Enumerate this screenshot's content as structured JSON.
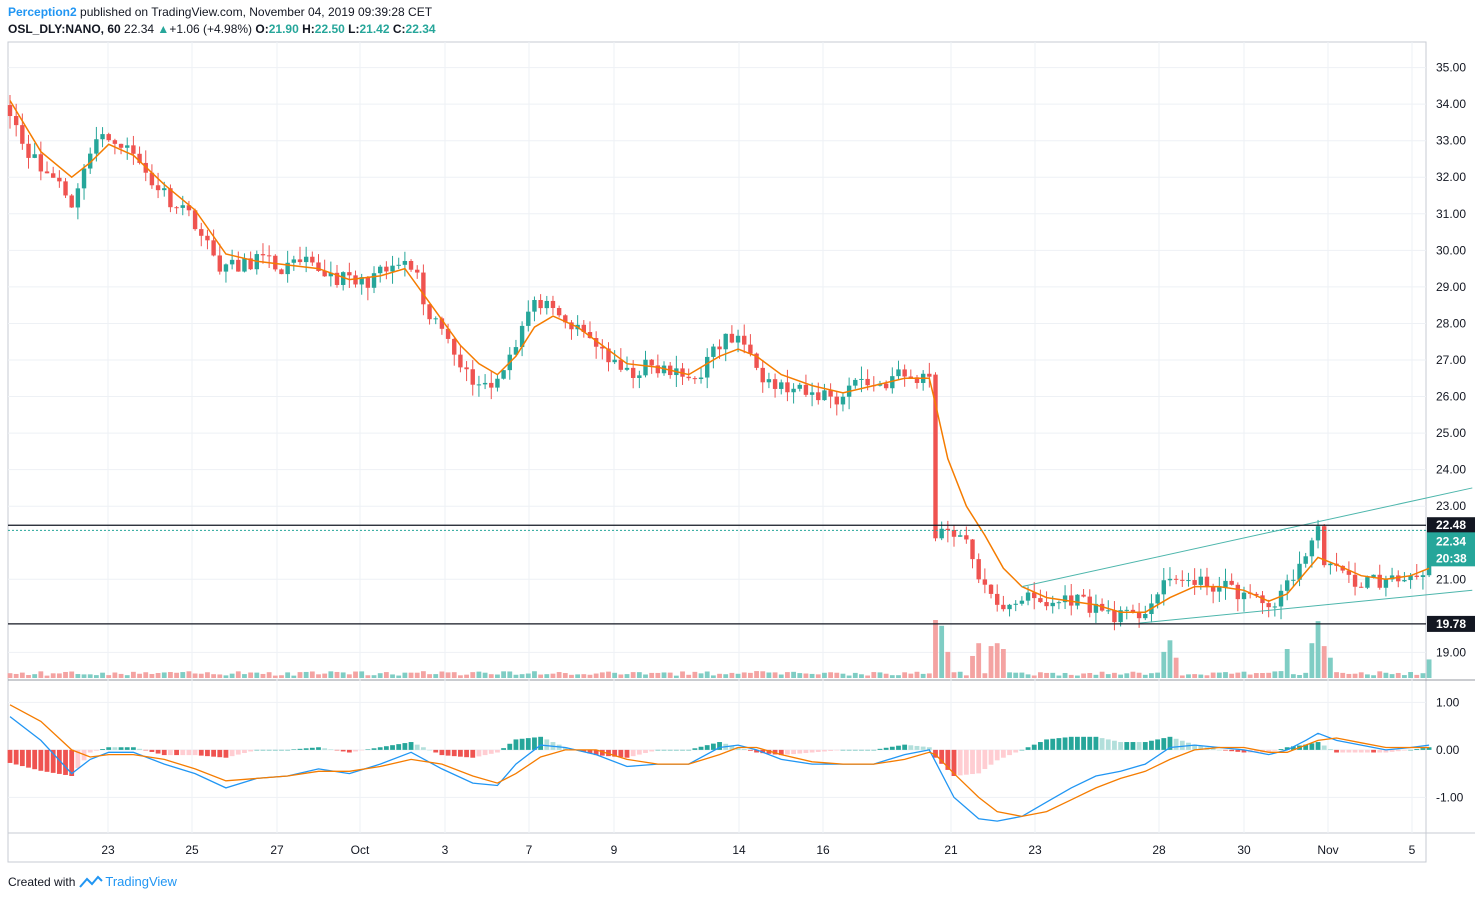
{
  "header": {
    "author": "Perception2",
    "published_text": "published on TradingView.com, November 04, 2019 09:39:28 CET",
    "symbol": "OSL_DLY:NANO, 60",
    "last": "22.34",
    "change": "+1.06 (+4.98%)",
    "open_label": "O:",
    "open": "21.90",
    "high_label": "H:",
    "high": "22.50",
    "low_label": "L:",
    "low": "21.42",
    "close_label": "C:",
    "close": "22.34"
  },
  "footer": {
    "created_with": "Created with",
    "brand": "TradingView"
  },
  "colors": {
    "up": "#26a69a",
    "down": "#ef5350",
    "up_vol": "#7fcdc4",
    "down_vol": "#f4a3a2",
    "ema": "#f57c00",
    "macd": "#2196f3",
    "signal": "#f57c00",
    "hist_up_strong": "#26a69a",
    "hist_up_weak": "#b2dfdb",
    "hist_down_strong": "#ef5350",
    "hist_down_weak": "#ffcdd2",
    "trend": "#4db6ac",
    "grid": "#eef1f5"
  },
  "chart_data": {
    "type": "candlestick",
    "symbol": "OSL_DLY:NANO",
    "interval": "60",
    "price_axis": {
      "ticks": [
        "35.00",
        "34.00",
        "33.00",
        "32.00",
        "31.00",
        "30.00",
        "29.00",
        "28.00",
        "27.00",
        "26.00",
        "25.00",
        "24.00",
        "23.00",
        "21.00",
        "19.00"
      ],
      "range": [
        18.3,
        35.7
      ]
    },
    "time_axis": {
      "ticks": [
        "23",
        "25",
        "27",
        "Oct",
        "3",
        "7",
        "9",
        "14",
        "16",
        "21",
        "23",
        "28",
        "30",
        "Nov",
        "5"
      ]
    },
    "horizontal_levels": [
      {
        "label": "22.48",
        "value": 22.48
      },
      {
        "label": "19.78",
        "value": 19.78
      }
    ],
    "last_price": {
      "label": "22.34",
      "value": 22.34
    },
    "countdown": "20:38",
    "price_path": [
      [
        0,
        33.9
      ],
      [
        2,
        33.0
      ],
      [
        5,
        32.2
      ],
      [
        8,
        31.9
      ],
      [
        10,
        31.3
      ],
      [
        11,
        31.6
      ],
      [
        12,
        32.4
      ],
      [
        14,
        33.0
      ],
      [
        17,
        33.1
      ],
      [
        20,
        32.6
      ],
      [
        23,
        31.9
      ],
      [
        26,
        31.4
      ],
      [
        28,
        31.2
      ],
      [
        30,
        30.8
      ],
      [
        32,
        30.1
      ],
      [
        34,
        29.6
      ],
      [
        37,
        29.5
      ],
      [
        40,
        29.8
      ],
      [
        44,
        29.5
      ],
      [
        48,
        29.6
      ],
      [
        51,
        29.4
      ],
      [
        54,
        29.2
      ],
      [
        57,
        29.1
      ],
      [
        59,
        29.3
      ],
      [
        61,
        29.4
      ],
      [
        63,
        29.6
      ],
      [
        65,
        29.5
      ],
      [
        66,
        29.2
      ],
      [
        67,
        28.3
      ],
      [
        69,
        28.0
      ],
      [
        71,
        27.7
      ],
      [
        73,
        27.0
      ],
      [
        74,
        26.6
      ],
      [
        76,
        26.4
      ],
      [
        78,
        26.3
      ],
      [
        79,
        26.5
      ],
      [
        80,
        26.9
      ],
      [
        82,
        27.5
      ],
      [
        84,
        28.3
      ],
      [
        86,
        28.6
      ],
      [
        88,
        28.2
      ],
      [
        90,
        28.0
      ],
      [
        92,
        27.8
      ],
      [
        94,
        27.6
      ],
      [
        96,
        27.3
      ],
      [
        98,
        26.8
      ],
      [
        100,
        26.6
      ],
      [
        103,
        26.8
      ],
      [
        106,
        26.7
      ],
      [
        108,
        26.6
      ],
      [
        110,
        26.5
      ],
      [
        112,
        26.7
      ],
      [
        114,
        27.2
      ],
      [
        116,
        27.6
      ],
      [
        118,
        27.5
      ],
      [
        120,
        27.4
      ],
      [
        121,
        27.0
      ],
      [
        122,
        26.6
      ],
      [
        124,
        26.3
      ],
      [
        126,
        26.2
      ],
      [
        128,
        26.1
      ],
      [
        130,
        26.0
      ],
      [
        132,
        26.1
      ],
      [
        134,
        25.9
      ],
      [
        136,
        26.3
      ],
      [
        138,
        26.5
      ],
      [
        140,
        26.3
      ],
      [
        142,
        26.4
      ],
      [
        144,
        26.6
      ],
      [
        146,
        26.5
      ],
      [
        148,
        26.5
      ],
      [
        149,
        26.6
      ],
      [
        150,
        22.3
      ],
      [
        152,
        22.4
      ],
      [
        154,
        22.2
      ],
      [
        156,
        21.6
      ],
      [
        158,
        20.7
      ],
      [
        160,
        20.2
      ],
      [
        162,
        20.4
      ],
      [
        164,
        20.5
      ],
      [
        166,
        20.4
      ],
      [
        168,
        20.3
      ],
      [
        170,
        20.4
      ],
      [
        172,
        20.5
      ],
      [
        174,
        20.4
      ],
      [
        176,
        20.2
      ],
      [
        178,
        20.1
      ],
      [
        180,
        20.0
      ],
      [
        182,
        19.9
      ],
      [
        184,
        20.2
      ],
      [
        186,
        20.6
      ],
      [
        188,
        20.9
      ],
      [
        190,
        21.1
      ],
      [
        192,
        20.8
      ],
      [
        194,
        20.9
      ],
      [
        196,
        20.8
      ],
      [
        198,
        20.7
      ],
      [
        200,
        20.6
      ],
      [
        202,
        20.4
      ],
      [
        204,
        20.3
      ],
      [
        206,
        20.5
      ],
      [
        207,
        20.9
      ],
      [
        209,
        21.4
      ],
      [
        211,
        22.0
      ],
      [
        212,
        22.3
      ],
      [
        213,
        21.6
      ],
      [
        215,
        21.2
      ],
      [
        217,
        21.0
      ],
      [
        219,
        20.9
      ],
      [
        221,
        21.0
      ],
      [
        223,
        20.9
      ],
      [
        225,
        21.0
      ],
      [
        227,
        21.1
      ],
      [
        229,
        21.3
      ],
      [
        230,
        22.34
      ]
    ],
    "ema": {
      "name": "",
      "values": [
        [
          0,
          34.1
        ],
        [
          5,
          32.7
        ],
        [
          10,
          32.0
        ],
        [
          13,
          32.4
        ],
        [
          16,
          32.9
        ],
        [
          20,
          32.6
        ],
        [
          25,
          31.8
        ],
        [
          30,
          31.1
        ],
        [
          35,
          29.9
        ],
        [
          40,
          29.7
        ],
        [
          45,
          29.6
        ],
        [
          50,
          29.5
        ],
        [
          55,
          29.2
        ],
        [
          60,
          29.3
        ],
        [
          64,
          29.5
        ],
        [
          67,
          28.8
        ],
        [
          70,
          28.1
        ],
        [
          73,
          27.4
        ],
        [
          76,
          26.9
        ],
        [
          79,
          26.6
        ],
        [
          82,
          27.1
        ],
        [
          85,
          27.9
        ],
        [
          88,
          28.2
        ],
        [
          92,
          27.9
        ],
        [
          96,
          27.4
        ],
        [
          100,
          26.9
        ],
        [
          105,
          26.8
        ],
        [
          110,
          26.6
        ],
        [
          115,
          27.1
        ],
        [
          118,
          27.3
        ],
        [
          121,
          27.1
        ],
        [
          125,
          26.6
        ],
        [
          130,
          26.3
        ],
        [
          135,
          26.1
        ],
        [
          140,
          26.3
        ],
        [
          145,
          26.5
        ],
        [
          149,
          26.5
        ],
        [
          150,
          25.8
        ],
        [
          152,
          24.3
        ],
        [
          155,
          23.0
        ],
        [
          158,
          22.2
        ],
        [
          161,
          21.3
        ],
        [
          164,
          20.8
        ],
        [
          168,
          20.5
        ],
        [
          172,
          20.4
        ],
        [
          176,
          20.3
        ],
        [
          180,
          20.1
        ],
        [
          184,
          20.1
        ],
        [
          188,
          20.5
        ],
        [
          192,
          20.8
        ],
        [
          196,
          20.8
        ],
        [
          200,
          20.7
        ],
        [
          204,
          20.4
        ],
        [
          207,
          20.6
        ],
        [
          210,
          21.2
        ],
        [
          212,
          21.6
        ],
        [
          215,
          21.4
        ],
        [
          219,
          21.1
        ],
        [
          223,
          21.0
        ],
        [
          227,
          21.1
        ],
        [
          230,
          21.3
        ]
      ]
    },
    "trendlines": [
      {
        "from": [
          164,
          20.8
        ],
        "to": [
          237,
          23.5
        ]
      },
      {
        "from": [
          183,
          19.8
        ],
        "to": [
          237,
          20.7
        ]
      }
    ],
    "volume": {
      "spikes": [
        [
          150,
          1.0
        ],
        [
          151,
          0.9
        ],
        [
          152,
          0.45
        ],
        [
          156,
          0.38
        ],
        [
          157,
          0.6
        ],
        [
          159,
          0.55
        ],
        [
          160,
          0.6
        ],
        [
          161,
          0.5
        ],
        [
          187,
          0.45
        ],
        [
          188,
          0.65
        ],
        [
          189,
          0.35
        ],
        [
          207,
          0.5
        ],
        [
          211,
          0.6
        ],
        [
          212,
          0.98
        ],
        [
          213,
          0.55
        ],
        [
          214,
          0.35
        ],
        [
          230,
          0.32
        ]
      ]
    },
    "macd": {
      "axis_ticks": [
        "1.00",
        "0.00",
        "-1.00"
      ],
      "range": [
        -1.75,
        1.45
      ],
      "macd_line": [
        [
          0,
          0.7
        ],
        [
          5,
          0.2
        ],
        [
          10,
          -0.5
        ],
        [
          13,
          -0.2
        ],
        [
          16,
          -0.05
        ],
        [
          20,
          -0.05
        ],
        [
          25,
          -0.3
        ],
        [
          30,
          -0.5
        ],
        [
          35,
          -0.8
        ],
        [
          40,
          -0.6
        ],
        [
          45,
          -0.55
        ],
        [
          50,
          -0.4
        ],
        [
          55,
          -0.5
        ],
        [
          60,
          -0.3
        ],
        [
          65,
          -0.05
        ],
        [
          70,
          -0.4
        ],
        [
          75,
          -0.7
        ],
        [
          79,
          -0.75
        ],
        [
          82,
          -0.3
        ],
        [
          86,
          0.1
        ],
        [
          90,
          0.05
        ],
        [
          95,
          -0.1
        ],
        [
          100,
          -0.35
        ],
        [
          105,
          -0.3
        ],
        [
          110,
          -0.3
        ],
        [
          115,
          0.05
        ],
        [
          118,
          0.1
        ],
        [
          121,
          0.0
        ],
        [
          125,
          -0.2
        ],
        [
          130,
          -0.3
        ],
        [
          135,
          -0.3
        ],
        [
          140,
          -0.3
        ],
        [
          145,
          -0.1
        ],
        [
          149,
          0.0
        ],
        [
          150,
          -0.25
        ],
        [
          153,
          -1.0
        ],
        [
          157,
          -1.45
        ],
        [
          160,
          -1.5
        ],
        [
          164,
          -1.4
        ],
        [
          168,
          -1.1
        ],
        [
          172,
          -0.8
        ],
        [
          176,
          -0.55
        ],
        [
          180,
          -0.45
        ],
        [
          184,
          -0.3
        ],
        [
          188,
          0.05
        ],
        [
          192,
          0.1
        ],
        [
          196,
          0.05
        ],
        [
          200,
          0.0
        ],
        [
          204,
          -0.1
        ],
        [
          207,
          0.0
        ],
        [
          210,
          0.2
        ],
        [
          212,
          0.35
        ],
        [
          215,
          0.2
        ],
        [
          219,
          0.1
        ],
        [
          223,
          0.0
        ],
        [
          227,
          0.05
        ],
        [
          230,
          0.1
        ]
      ],
      "signal_line": [
        [
          0,
          0.95
        ],
        [
          5,
          0.6
        ],
        [
          10,
          0.0
        ],
        [
          13,
          -0.15
        ],
        [
          16,
          -0.1
        ],
        [
          20,
          -0.1
        ],
        [
          25,
          -0.2
        ],
        [
          30,
          -0.4
        ],
        [
          35,
          -0.65
        ],
        [
          40,
          -0.6
        ],
        [
          45,
          -0.55
        ],
        [
          50,
          -0.45
        ],
        [
          55,
          -0.45
        ],
        [
          60,
          -0.35
        ],
        [
          65,
          -0.2
        ],
        [
          70,
          -0.3
        ],
        [
          75,
          -0.55
        ],
        [
          79,
          -0.7
        ],
        [
          82,
          -0.5
        ],
        [
          86,
          -0.15
        ],
        [
          90,
          0.0
        ],
        [
          95,
          0.0
        ],
        [
          100,
          -0.2
        ],
        [
          105,
          -0.3
        ],
        [
          110,
          -0.3
        ],
        [
          115,
          -0.1
        ],
        [
          118,
          0.05
        ],
        [
          121,
          0.05
        ],
        [
          125,
          -0.1
        ],
        [
          130,
          -0.25
        ],
        [
          135,
          -0.3
        ],
        [
          140,
          -0.3
        ],
        [
          145,
          -0.2
        ],
        [
          149,
          -0.05
        ],
        [
          150,
          -0.1
        ],
        [
          153,
          -0.5
        ],
        [
          157,
          -1.0
        ],
        [
          160,
          -1.3
        ],
        [
          164,
          -1.4
        ],
        [
          168,
          -1.3
        ],
        [
          172,
          -1.05
        ],
        [
          176,
          -0.8
        ],
        [
          180,
          -0.6
        ],
        [
          184,
          -0.45
        ],
        [
          188,
          -0.2
        ],
        [
          192,
          0.0
        ],
        [
          196,
          0.05
        ],
        [
          200,
          0.05
        ],
        [
          204,
          -0.05
        ],
        [
          207,
          -0.05
        ],
        [
          210,
          0.1
        ],
        [
          212,
          0.2
        ],
        [
          215,
          0.25
        ],
        [
          219,
          0.15
        ],
        [
          223,
          0.05
        ],
        [
          227,
          0.05
        ],
        [
          230,
          0.05
        ]
      ]
    }
  }
}
